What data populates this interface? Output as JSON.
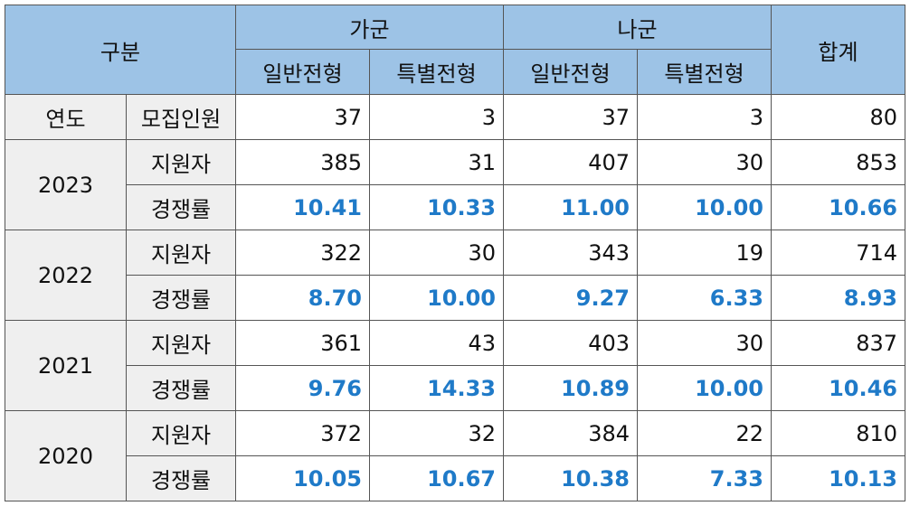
{
  "header": {
    "category": "구분",
    "group_ga": "가군",
    "group_na": "나군",
    "total": "합계",
    "general": "일반전형",
    "special": "특별전형"
  },
  "recruit": {
    "year_label": "연도",
    "label": "모집인원",
    "values": [
      "37",
      "3",
      "37",
      "3",
      "80"
    ]
  },
  "applicant_label": "지원자",
  "ratio_label": "경쟁률",
  "colors": {
    "header_bg": "#9dc3e6",
    "label_bg": "#efefef",
    "ratio_text": "#1f7ac8"
  },
  "years": [
    {
      "year": "2023",
      "applicants": [
        "385",
        "31",
        "407",
        "30",
        "853"
      ],
      "ratios": [
        "10.41",
        "10.33",
        "11.00",
        "10.00",
        "10.66"
      ]
    },
    {
      "year": "2022",
      "applicants": [
        "322",
        "30",
        "343",
        "19",
        "714"
      ],
      "ratios": [
        "8.70",
        "10.00",
        "9.27",
        "6.33",
        "8.93"
      ]
    },
    {
      "year": "2021",
      "applicants": [
        "361",
        "43",
        "403",
        "30",
        "837"
      ],
      "ratios": [
        "9.76",
        "14.33",
        "10.89",
        "10.00",
        "10.46"
      ]
    },
    {
      "year": "2020",
      "applicants": [
        "372",
        "32",
        "384",
        "22",
        "810"
      ],
      "ratios": [
        "10.05",
        "10.67",
        "10.38",
        "7.33",
        "10.13"
      ]
    }
  ]
}
